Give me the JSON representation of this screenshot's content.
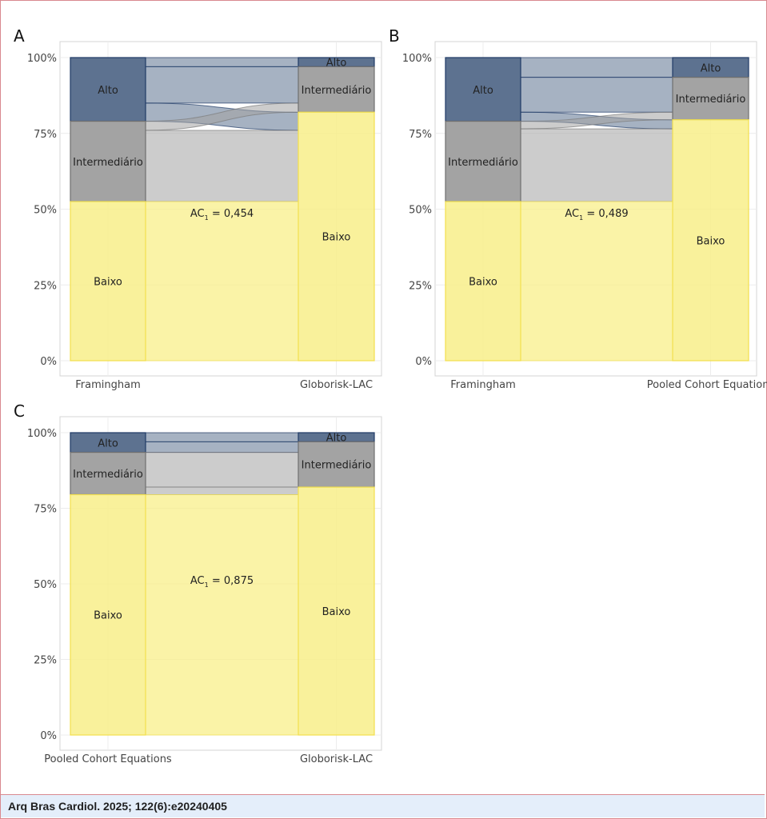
{
  "footer": {
    "citation": "Arq Bras Cardiol. 2025; 122(6):e20240405"
  },
  "colors": {
    "alto": "#5d7290",
    "intermediario": "#a3a3a3",
    "baixo": "#f8ef8a",
    "alto_border": "#1f3a66",
    "baixo_line": "#f2e04e"
  },
  "chart_data": [
    {
      "type": "alluvial",
      "panel": "A",
      "yticks": [
        "0%",
        "25%",
        "50%",
        "75%",
        "100%"
      ],
      "ylim": [
        0,
        100
      ],
      "grid": true,
      "axis_categories": [
        "Framingham",
        "Globorisk-LAC"
      ],
      "categories": [
        "Alto",
        "Intermediário",
        "Baixo"
      ],
      "strata": [
        {
          "axis": "Framingham",
          "values": {
            "Alto": 21,
            "Intermediário": 26.5,
            "Baixo": 52.5
          }
        },
        {
          "axis": "Globorisk-LAC",
          "values": {
            "Alto": 3,
            "Intermediário": 15,
            "Baixo": 82
          }
        }
      ],
      "flows": [
        {
          "from": "Alto",
          "to": "Alto",
          "value": 3
        },
        {
          "from": "Alto",
          "to": "Intermediário",
          "value": 12
        },
        {
          "from": "Alto",
          "to": "Baixo",
          "value": 6
        },
        {
          "from": "Intermediário",
          "to": "Alto",
          "value": 0
        },
        {
          "from": "Intermediário",
          "to": "Intermediário",
          "value": 3
        },
        {
          "from": "Intermediário",
          "to": "Baixo",
          "value": 23.5
        },
        {
          "from": "Baixo",
          "to": "Alto",
          "value": 0
        },
        {
          "from": "Baixo",
          "to": "Intermediário",
          "value": 0
        },
        {
          "from": "Baixo",
          "to": "Baixo",
          "value": 52.5
        }
      ],
      "annotation": {
        "text": "AC",
        "subscript": "1",
        "value_text": " = 0,454"
      }
    },
    {
      "type": "alluvial",
      "panel": "B",
      "yticks": [
        "0%",
        "25%",
        "50%",
        "75%",
        "100%"
      ],
      "ylim": [
        0,
        100
      ],
      "grid": true,
      "axis_categories": [
        "Framingham",
        "Pooled Cohort Equations"
      ],
      "categories": [
        "Alto",
        "Intermediário",
        "Baixo"
      ],
      "strata": [
        {
          "axis": "Framingham",
          "values": {
            "Alto": 21,
            "Intermediário": 26.5,
            "Baixo": 52.5
          }
        },
        {
          "axis": "Pooled Cohort Equations",
          "values": {
            "Alto": 6.5,
            "Intermediário": 14,
            "Baixo": 79.5
          }
        }
      ],
      "flows": [
        {
          "from": "Alto",
          "to": "Alto",
          "value": 6.5
        },
        {
          "from": "Alto",
          "to": "Intermediário",
          "value": 11.5
        },
        {
          "from": "Alto",
          "to": "Baixo",
          "value": 3
        },
        {
          "from": "Intermediário",
          "to": "Alto",
          "value": 0
        },
        {
          "from": "Intermediário",
          "to": "Intermediário",
          "value": 2.5
        },
        {
          "from": "Intermediário",
          "to": "Baixo",
          "value": 24
        },
        {
          "from": "Baixo",
          "to": "Alto",
          "value": 0
        },
        {
          "from": "Baixo",
          "to": "Intermediário",
          "value": 0
        },
        {
          "from": "Baixo",
          "to": "Baixo",
          "value": 52.5
        }
      ],
      "annotation": {
        "text": "AC",
        "subscript": "1",
        "value_text": " = 0,489"
      }
    },
    {
      "type": "alluvial",
      "panel": "C",
      "yticks": [
        "0%",
        "25%",
        "50%",
        "75%",
        "100%"
      ],
      "ylim": [
        0,
        100
      ],
      "grid": true,
      "axis_categories": [
        "Pooled Cohort Equations",
        "Globorisk-LAC"
      ],
      "categories": [
        "Alto",
        "Intermediário",
        "Baixo"
      ],
      "strata": [
        {
          "axis": "Pooled Cohort Equations",
          "values": {
            "Alto": 6.5,
            "Intermediário": 14,
            "Baixo": 79.5
          }
        },
        {
          "axis": "Globorisk-LAC",
          "values": {
            "Alto": 3,
            "Intermediário": 15,
            "Baixo": 82
          }
        }
      ],
      "flows": [
        {
          "from": "Alto",
          "to": "Alto",
          "value": 3
        },
        {
          "from": "Alto",
          "to": "Intermediário",
          "value": 3.5
        },
        {
          "from": "Alto",
          "to": "Baixo",
          "value": 0
        },
        {
          "from": "Intermediário",
          "to": "Alto",
          "value": 0
        },
        {
          "from": "Intermediário",
          "to": "Intermediário",
          "value": 11.5
        },
        {
          "from": "Intermediário",
          "to": "Baixo",
          "value": 2.5
        },
        {
          "from": "Baixo",
          "to": "Alto",
          "value": 0
        },
        {
          "from": "Baixo",
          "to": "Intermediário",
          "value": 0
        },
        {
          "from": "Baixo",
          "to": "Baixo",
          "value": 79.5
        }
      ],
      "annotation": {
        "text": "AC",
        "subscript": "1",
        "value_text": " = 0,875"
      }
    }
  ]
}
